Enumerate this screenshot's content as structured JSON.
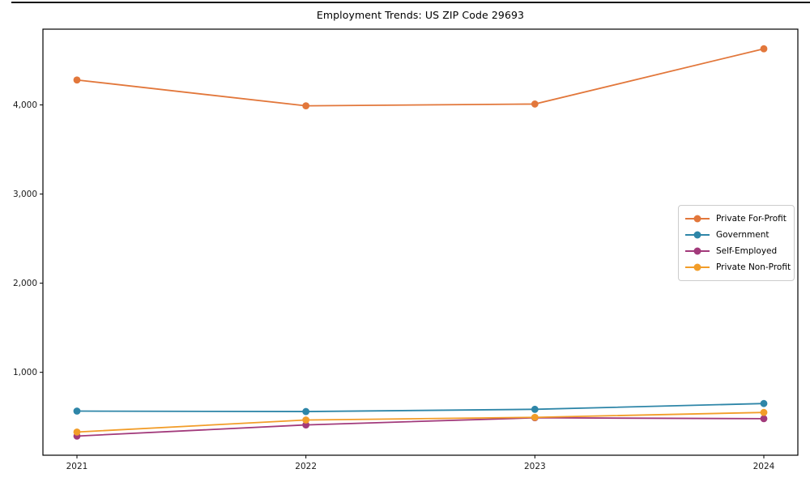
{
  "window": {
    "top_border_color": "#111111"
  },
  "chart_data": {
    "type": "line",
    "title": "Employment Trends: US ZIP Code 29693",
    "x": [
      2021,
      2022,
      2023,
      2024
    ],
    "x_tick_labels": [
      "2021",
      "2022",
      "2023",
      "2024"
    ],
    "series": [
      {
        "name": "Private For-Profit",
        "color": "#E2773B",
        "values": [
          4280,
          3990,
          4010,
          4630
        ]
      },
      {
        "name": "Government",
        "color": "#2E86A8",
        "values": [
          565,
          560,
          585,
          650
        ]
      },
      {
        "name": "Self-Employed",
        "color": "#A23A7B",
        "values": [
          285,
          410,
          490,
          480
        ]
      },
      {
        "name": "Private Non-Profit",
        "color": "#F29D29",
        "values": [
          330,
          465,
          495,
          550
        ]
      }
    ],
    "ylim": [
      70,
      4850
    ],
    "y_ticks": [
      1000,
      2000,
      3000,
      4000
    ],
    "y_tick_labels": [
      "1,000",
      "2,000",
      "3,000",
      "4,000"
    ],
    "grid": false,
    "legend_position": "center right",
    "marker": "o",
    "axis_color": "#000000",
    "tick_label_color": "#1a1a1a"
  }
}
